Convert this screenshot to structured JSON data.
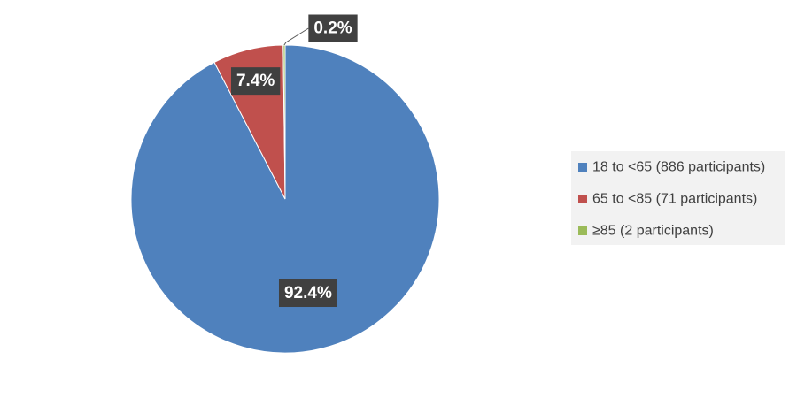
{
  "chart_data": {
    "type": "pie",
    "title": "",
    "categories": [
      "18 to <65 (886 participants)",
      "65 to <85 (71 participants)",
      "≥85 (2 participants)"
    ],
    "values": [
      92.4,
      7.4,
      0.2
    ],
    "data_labels": [
      "92.4%",
      "7.4%",
      "0.2%"
    ],
    "colors": [
      "#4f81bd",
      "#c0504d",
      "#9bbb59"
    ],
    "legend": {
      "position": "right",
      "background": "#f2f2f2"
    },
    "data_label_style": {
      "background": "#404040",
      "text_color": "#ffffff"
    },
    "start_angle": "12 o'clock",
    "direction": "clockwise"
  }
}
